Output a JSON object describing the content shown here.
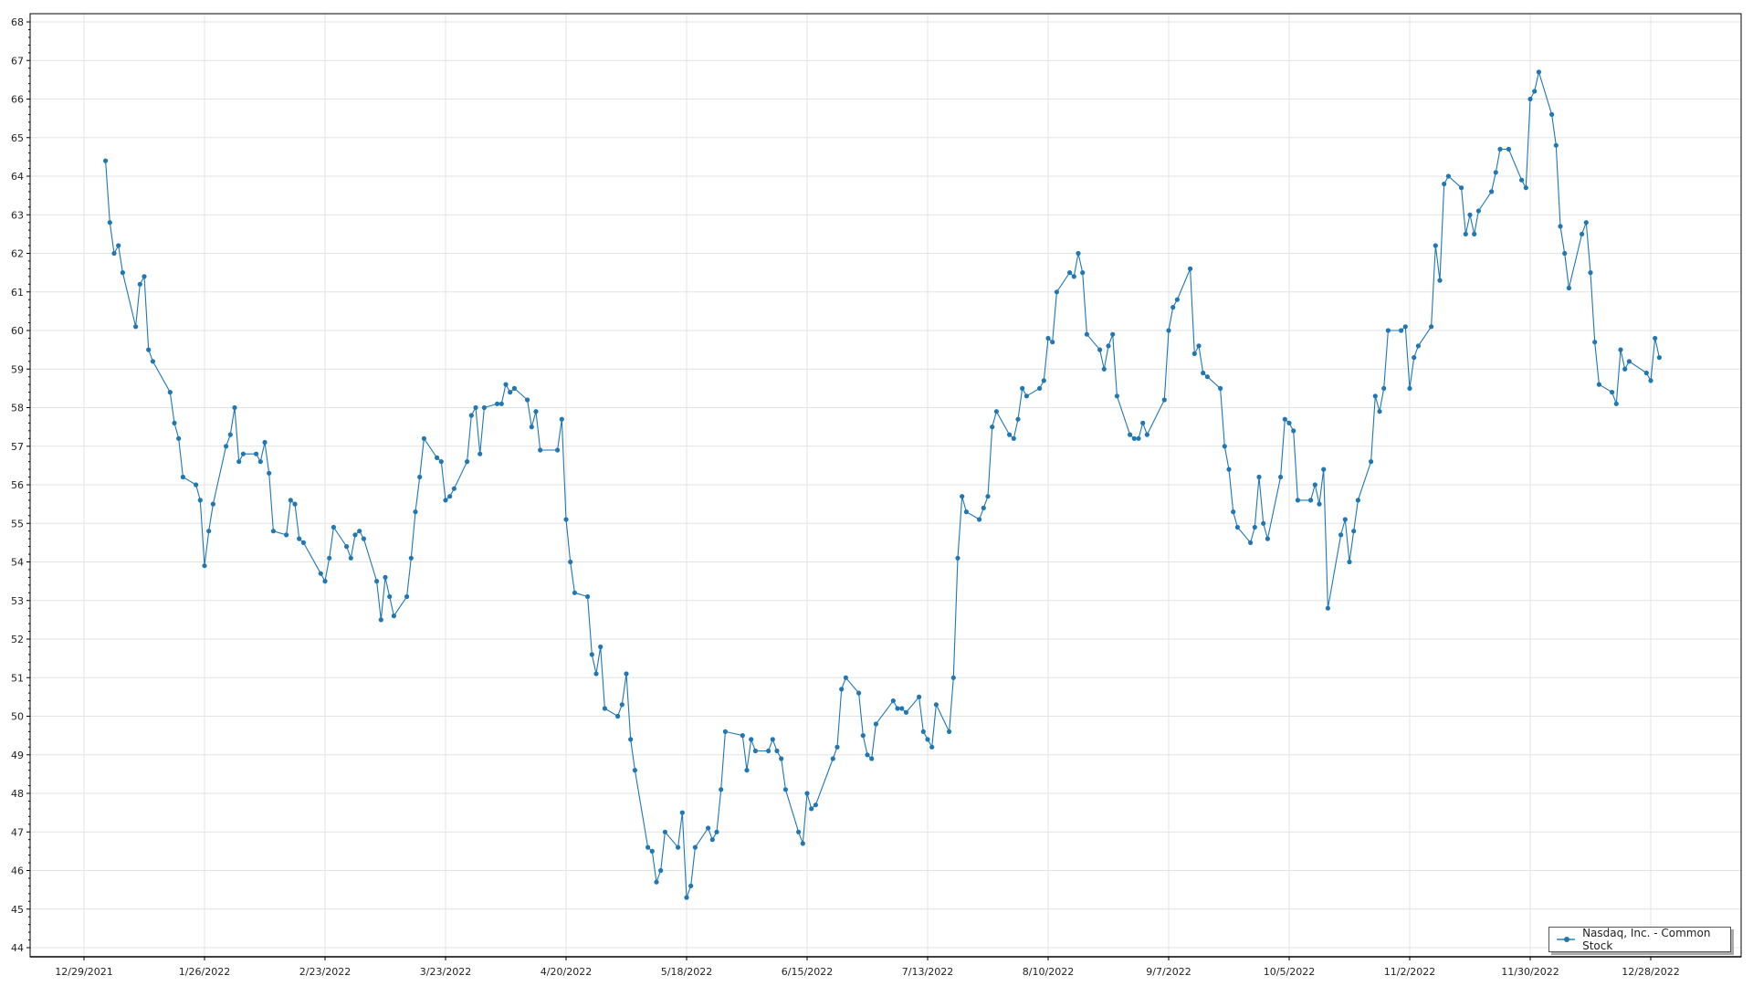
{
  "chart_data": {
    "type": "line",
    "title": "",
    "xlabel": "",
    "ylabel": "",
    "ylim": [
      44,
      68
    ],
    "yticks": [
      44,
      45,
      46,
      47,
      48,
      49,
      50,
      51,
      52,
      53,
      54,
      55,
      56,
      57,
      58,
      59,
      60,
      61,
      62,
      63,
      64,
      65,
      66,
      67,
      68
    ],
    "xlim": [
      "2021-12-29",
      "2023-01-06"
    ],
    "xticks": [
      "2021-12-29",
      "2022-01-26",
      "2022-02-23",
      "2022-03-23",
      "2022-04-20",
      "2022-05-18",
      "2022-06-15",
      "2022-07-13",
      "2022-08-10",
      "2022-09-07",
      "2022-10-05",
      "2022-11-02",
      "2022-11-30",
      "2022-12-28"
    ],
    "xtick_labels": [
      "12/29/2021",
      "1/26/2022",
      "2/23/2022",
      "3/23/2022",
      "4/20/2022",
      "5/18/2022",
      "6/15/2022",
      "7/13/2022",
      "8/10/2022",
      "9/7/2022",
      "10/5/2022",
      "11/2/2022",
      "11/30/2022",
      "12/28/2022"
    ],
    "grid": true,
    "legend_position": "bottom-right",
    "series": [
      {
        "name": "Nasdaq, Inc. - Common Stock",
        "color": "#1f77b4",
        "points": [
          [
            "2022-01-03",
            64.4
          ],
          [
            "2022-01-04",
            62.8
          ],
          [
            "2022-01-05",
            62.0
          ],
          [
            "2022-01-06",
            62.2
          ],
          [
            "2022-01-07",
            61.5
          ],
          [
            "2022-01-10",
            60.1
          ],
          [
            "2022-01-11",
            61.2
          ],
          [
            "2022-01-12",
            61.4
          ],
          [
            "2022-01-13",
            59.5
          ],
          [
            "2022-01-14",
            59.2
          ],
          [
            "2022-01-18",
            58.4
          ],
          [
            "2022-01-19",
            57.6
          ],
          [
            "2022-01-20",
            57.2
          ],
          [
            "2022-01-21",
            56.2
          ],
          [
            "2022-01-24",
            56.0
          ],
          [
            "2022-01-25",
            55.6
          ],
          [
            "2022-01-26",
            53.9
          ],
          [
            "2022-01-27",
            54.8
          ],
          [
            "2022-01-28",
            55.5
          ],
          [
            "2022-01-31",
            57.0
          ],
          [
            "2022-02-01",
            57.3
          ],
          [
            "2022-02-02",
            58.0
          ],
          [
            "2022-02-03",
            56.6
          ],
          [
            "2022-02-04",
            56.8
          ],
          [
            "2022-02-07",
            56.8
          ],
          [
            "2022-02-08",
            56.6
          ],
          [
            "2022-02-09",
            57.1
          ],
          [
            "2022-02-10",
            56.3
          ],
          [
            "2022-02-11",
            54.8
          ],
          [
            "2022-02-14",
            54.7
          ],
          [
            "2022-02-15",
            55.6
          ],
          [
            "2022-02-16",
            55.5
          ],
          [
            "2022-02-17",
            54.6
          ],
          [
            "2022-02-18",
            54.5
          ],
          [
            "2022-02-22",
            53.7
          ],
          [
            "2022-02-23",
            53.5
          ],
          [
            "2022-02-24",
            54.1
          ],
          [
            "2022-02-25",
            54.9
          ],
          [
            "2022-02-28",
            54.4
          ],
          [
            "2022-03-01",
            54.1
          ],
          [
            "2022-03-02",
            54.7
          ],
          [
            "2022-03-03",
            54.8
          ],
          [
            "2022-03-04",
            54.6
          ],
          [
            "2022-03-07",
            53.5
          ],
          [
            "2022-03-08",
            52.5
          ],
          [
            "2022-03-09",
            53.6
          ],
          [
            "2022-03-10",
            53.1
          ],
          [
            "2022-03-11",
            52.6
          ],
          [
            "2022-03-14",
            53.1
          ],
          [
            "2022-03-15",
            54.1
          ],
          [
            "2022-03-16",
            55.3
          ],
          [
            "2022-03-17",
            56.2
          ],
          [
            "2022-03-18",
            57.2
          ],
          [
            "2022-03-21",
            56.7
          ],
          [
            "2022-03-22",
            56.6
          ],
          [
            "2022-03-23",
            55.6
          ],
          [
            "2022-03-24",
            55.7
          ],
          [
            "2022-03-25",
            55.9
          ],
          [
            "2022-03-28",
            56.6
          ],
          [
            "2022-03-29",
            57.8
          ],
          [
            "2022-03-30",
            58.0
          ],
          [
            "2022-03-31",
            56.8
          ],
          [
            "2022-04-01",
            58.0
          ],
          [
            "2022-04-04",
            58.1
          ],
          [
            "2022-04-05",
            58.1
          ],
          [
            "2022-04-06",
            58.6
          ],
          [
            "2022-04-07",
            58.4
          ],
          [
            "2022-04-08",
            58.5
          ],
          [
            "2022-04-11",
            58.2
          ],
          [
            "2022-04-12",
            57.5
          ],
          [
            "2022-04-13",
            57.9
          ],
          [
            "2022-04-14",
            56.9
          ],
          [
            "2022-04-18",
            56.9
          ],
          [
            "2022-04-19",
            57.7
          ],
          [
            "2022-04-20",
            55.1
          ],
          [
            "2022-04-21",
            54.0
          ],
          [
            "2022-04-22",
            53.2
          ],
          [
            "2022-04-25",
            53.1
          ],
          [
            "2022-04-26",
            51.6
          ],
          [
            "2022-04-27",
            51.1
          ],
          [
            "2022-04-28",
            51.8
          ],
          [
            "2022-04-29",
            50.2
          ],
          [
            "2022-05-02",
            50.0
          ],
          [
            "2022-05-03",
            50.3
          ],
          [
            "2022-05-04",
            51.1
          ],
          [
            "2022-05-05",
            49.4
          ],
          [
            "2022-05-06",
            48.6
          ],
          [
            "2022-05-09",
            46.6
          ],
          [
            "2022-05-10",
            46.5
          ],
          [
            "2022-05-11",
            45.7
          ],
          [
            "2022-05-12",
            46.0
          ],
          [
            "2022-05-13",
            47.0
          ],
          [
            "2022-05-16",
            46.6
          ],
          [
            "2022-05-17",
            47.5
          ],
          [
            "2022-05-18",
            45.3
          ],
          [
            "2022-05-19",
            45.6
          ],
          [
            "2022-05-20",
            46.6
          ],
          [
            "2022-05-23",
            47.1
          ],
          [
            "2022-05-24",
            46.8
          ],
          [
            "2022-05-25",
            47.0
          ],
          [
            "2022-05-26",
            48.1
          ],
          [
            "2022-05-27",
            49.6
          ],
          [
            "2022-05-31",
            49.5
          ],
          [
            "2022-06-01",
            48.6
          ],
          [
            "2022-06-02",
            49.4
          ],
          [
            "2022-06-03",
            49.1
          ],
          [
            "2022-06-06",
            49.1
          ],
          [
            "2022-06-07",
            49.4
          ],
          [
            "2022-06-08",
            49.1
          ],
          [
            "2022-06-09",
            48.9
          ],
          [
            "2022-06-10",
            48.1
          ],
          [
            "2022-06-13",
            47.0
          ],
          [
            "2022-06-14",
            46.7
          ],
          [
            "2022-06-15",
            48.0
          ],
          [
            "2022-06-16",
            47.6
          ],
          [
            "2022-06-17",
            47.7
          ],
          [
            "2022-06-21",
            48.9
          ],
          [
            "2022-06-22",
            49.2
          ],
          [
            "2022-06-23",
            50.7
          ],
          [
            "2022-06-24",
            51.0
          ],
          [
            "2022-06-27",
            50.6
          ],
          [
            "2022-06-28",
            49.5
          ],
          [
            "2022-06-29",
            49.0
          ],
          [
            "2022-06-30",
            48.9
          ],
          [
            "2022-07-01",
            49.8
          ],
          [
            "2022-07-05",
            50.4
          ],
          [
            "2022-07-06",
            50.2
          ],
          [
            "2022-07-07",
            50.2
          ],
          [
            "2022-07-08",
            50.1
          ],
          [
            "2022-07-11",
            50.5
          ],
          [
            "2022-07-12",
            49.6
          ],
          [
            "2022-07-13",
            49.4
          ],
          [
            "2022-07-14",
            49.2
          ],
          [
            "2022-07-15",
            50.3
          ],
          [
            "2022-07-18",
            49.6
          ],
          [
            "2022-07-19",
            51.0
          ],
          [
            "2022-07-20",
            54.1
          ],
          [
            "2022-07-21",
            55.7
          ],
          [
            "2022-07-22",
            55.3
          ],
          [
            "2022-07-25",
            55.1
          ],
          [
            "2022-07-26",
            55.4
          ],
          [
            "2022-07-27",
            55.7
          ],
          [
            "2022-07-28",
            57.5
          ],
          [
            "2022-07-29",
            57.9
          ],
          [
            "2022-08-01",
            57.3
          ],
          [
            "2022-08-02",
            57.2
          ],
          [
            "2022-08-03",
            57.7
          ],
          [
            "2022-08-04",
            58.5
          ],
          [
            "2022-08-05",
            58.3
          ],
          [
            "2022-08-08",
            58.5
          ],
          [
            "2022-08-09",
            58.7
          ],
          [
            "2022-08-10",
            59.8
          ],
          [
            "2022-08-11",
            59.7
          ],
          [
            "2022-08-12",
            61.0
          ],
          [
            "2022-08-15",
            61.5
          ],
          [
            "2022-08-16",
            61.4
          ],
          [
            "2022-08-17",
            62.0
          ],
          [
            "2022-08-18",
            61.5
          ],
          [
            "2022-08-19",
            59.9
          ],
          [
            "2022-08-22",
            59.5
          ],
          [
            "2022-08-23",
            59.0
          ],
          [
            "2022-08-24",
            59.6
          ],
          [
            "2022-08-25",
            59.9
          ],
          [
            "2022-08-26",
            58.3
          ],
          [
            "2022-08-29",
            57.3
          ],
          [
            "2022-08-30",
            57.2
          ],
          [
            "2022-08-31",
            57.2
          ],
          [
            "2022-09-01",
            57.6
          ],
          [
            "2022-09-02",
            57.3
          ],
          [
            "2022-09-06",
            58.2
          ],
          [
            "2022-09-07",
            60.0
          ],
          [
            "2022-09-08",
            60.6
          ],
          [
            "2022-09-09",
            60.8
          ],
          [
            "2022-09-12",
            61.6
          ],
          [
            "2022-09-13",
            59.4
          ],
          [
            "2022-09-14",
            59.6
          ],
          [
            "2022-09-15",
            58.9
          ],
          [
            "2022-09-16",
            58.8
          ],
          [
            "2022-09-19",
            58.5
          ],
          [
            "2022-09-20",
            57.0
          ],
          [
            "2022-09-21",
            56.4
          ],
          [
            "2022-09-22",
            55.3
          ],
          [
            "2022-09-23",
            54.9
          ],
          [
            "2022-09-26",
            54.5
          ],
          [
            "2022-09-27",
            54.9
          ],
          [
            "2022-09-28",
            56.2
          ],
          [
            "2022-09-29",
            55.0
          ],
          [
            "2022-09-30",
            54.6
          ],
          [
            "2022-10-03",
            56.2
          ],
          [
            "2022-10-04",
            57.7
          ],
          [
            "2022-10-05",
            57.6
          ],
          [
            "2022-10-06",
            57.4
          ],
          [
            "2022-10-07",
            55.6
          ],
          [
            "2022-10-10",
            55.6
          ],
          [
            "2022-10-11",
            56.0
          ],
          [
            "2022-10-12",
            55.5
          ],
          [
            "2022-10-13",
            56.4
          ],
          [
            "2022-10-14",
            52.8
          ],
          [
            "2022-10-17",
            54.7
          ],
          [
            "2022-10-18",
            55.1
          ],
          [
            "2022-10-19",
            54.0
          ],
          [
            "2022-10-20",
            54.8
          ],
          [
            "2022-10-21",
            55.6
          ],
          [
            "2022-10-24",
            56.6
          ],
          [
            "2022-10-25",
            58.3
          ],
          [
            "2022-10-26",
            57.9
          ],
          [
            "2022-10-27",
            58.5
          ],
          [
            "2022-10-28",
            60.0
          ],
          [
            "2022-10-31",
            60.0
          ],
          [
            "2022-11-01",
            60.1
          ],
          [
            "2022-11-02",
            58.5
          ],
          [
            "2022-11-03",
            59.3
          ],
          [
            "2022-11-04",
            59.6
          ],
          [
            "2022-11-07",
            60.1
          ],
          [
            "2022-11-08",
            62.2
          ],
          [
            "2022-11-09",
            61.3
          ],
          [
            "2022-11-10",
            63.8
          ],
          [
            "2022-11-11",
            64.0
          ],
          [
            "2022-11-14",
            63.7
          ],
          [
            "2022-11-15",
            62.5
          ],
          [
            "2022-11-16",
            63.0
          ],
          [
            "2022-11-17",
            62.5
          ],
          [
            "2022-11-18",
            63.1
          ],
          [
            "2022-11-21",
            63.6
          ],
          [
            "2022-11-22",
            64.1
          ],
          [
            "2022-11-23",
            64.7
          ],
          [
            "2022-11-25",
            64.7
          ],
          [
            "2022-11-28",
            63.9
          ],
          [
            "2022-11-29",
            63.7
          ],
          [
            "2022-11-30",
            66.0
          ],
          [
            "2022-12-01",
            66.2
          ],
          [
            "2022-12-02",
            66.7
          ],
          [
            "2022-12-05",
            65.6
          ],
          [
            "2022-12-06",
            64.8
          ],
          [
            "2022-12-07",
            62.7
          ],
          [
            "2022-12-08",
            62.0
          ],
          [
            "2022-12-09",
            61.1
          ],
          [
            "2022-12-12",
            62.5
          ],
          [
            "2022-12-13",
            62.8
          ],
          [
            "2022-12-14",
            61.5
          ],
          [
            "2022-12-15",
            59.7
          ],
          [
            "2022-12-16",
            58.6
          ],
          [
            "2022-12-19",
            58.4
          ],
          [
            "2022-12-20",
            58.1
          ],
          [
            "2022-12-21",
            59.5
          ],
          [
            "2022-12-22",
            59.0
          ],
          [
            "2022-12-23",
            59.2
          ],
          [
            "2022-12-27",
            58.9
          ],
          [
            "2022-12-28",
            58.7
          ],
          [
            "2022-12-29",
            59.8
          ],
          [
            "2022-12-30",
            59.3
          ]
        ]
      }
    ]
  }
}
